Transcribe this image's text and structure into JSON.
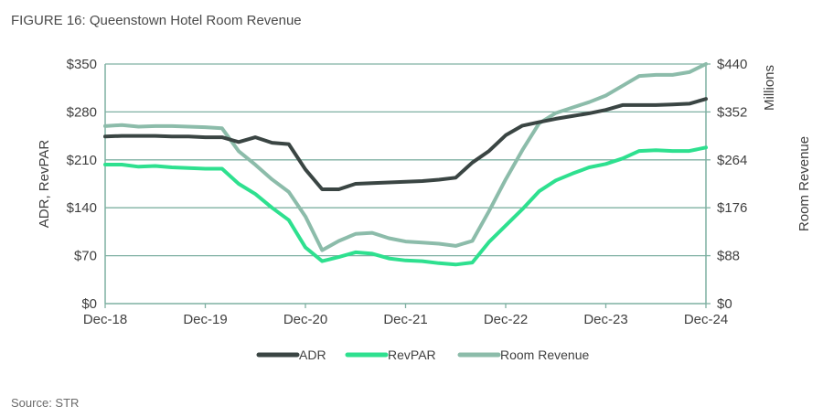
{
  "figure_title": "FIGURE 16: Queenstown Hotel Room Revenue",
  "source": "Source: STR",
  "chart_data": {
    "type": "line",
    "title": "Queenstown Hotel Room Revenue",
    "xlabel": "",
    "ylabel": "ADR, RevPAR",
    "y2label": "Room Revenue",
    "y2unit_label": "Millions",
    "ylim": [
      0,
      350
    ],
    "y2lim": [
      0,
      440
    ],
    "yticks": [
      "$0",
      "$70",
      "$140",
      "$210",
      "$280",
      "$350"
    ],
    "y2ticks": [
      "$0",
      "$88",
      "$176",
      "$264",
      "$352",
      "$440"
    ],
    "xticks": [
      "Dec-18",
      "Dec-19",
      "Dec-20",
      "Dec-21",
      "Dec-22",
      "Dec-23",
      "Dec-24"
    ],
    "grid": true,
    "legend_position": "bottom",
    "x_months_from_dec18": [
      0,
      2,
      4,
      6,
      8,
      10,
      12,
      14,
      16,
      18,
      20,
      22,
      24,
      26,
      28,
      30,
      32,
      34,
      36,
      38,
      40,
      42,
      44,
      46,
      48,
      50,
      52,
      54,
      56,
      58,
      60,
      62,
      64,
      66,
      68,
      70,
      72
    ],
    "series": [
      {
        "name": "ADR",
        "axis": "left",
        "color": "#3a4543",
        "values": [
          244,
          245,
          245,
          245,
          244,
          244,
          243,
          243,
          236,
          243,
          235,
          233,
          196,
          167,
          167,
          175,
          176,
          177,
          178,
          179,
          181,
          184,
          206,
          223,
          246,
          260,
          265,
          270,
          274,
          278,
          283,
          290,
          290,
          290,
          291,
          292,
          299
        ]
      },
      {
        "name": "RevPAR",
        "axis": "left",
        "color": "#2ee08f",
        "values": [
          203,
          203,
          200,
          201,
          199,
          198,
          197,
          197,
          175,
          160,
          140,
          122,
          82,
          62,
          68,
          75,
          73,
          66,
          63,
          62,
          59,
          57,
          60,
          90,
          114,
          138,
          164,
          180,
          190,
          199,
          204,
          212,
          223,
          224,
          223,
          223,
          228
        ]
      },
      {
        "name": "Room Revenue",
        "axis": "right",
        "color": "#8cbcaa",
        "values": [
          326,
          328,
          325,
          326,
          326,
          325,
          324,
          322,
          280,
          255,
          228,
          205,
          160,
          98,
          115,
          128,
          130,
          120,
          114,
          112,
          110,
          106,
          115,
          170,
          228,
          282,
          331,
          350,
          360,
          370,
          382,
          400,
          418,
          420,
          420,
          425,
          440
        ]
      }
    ]
  }
}
